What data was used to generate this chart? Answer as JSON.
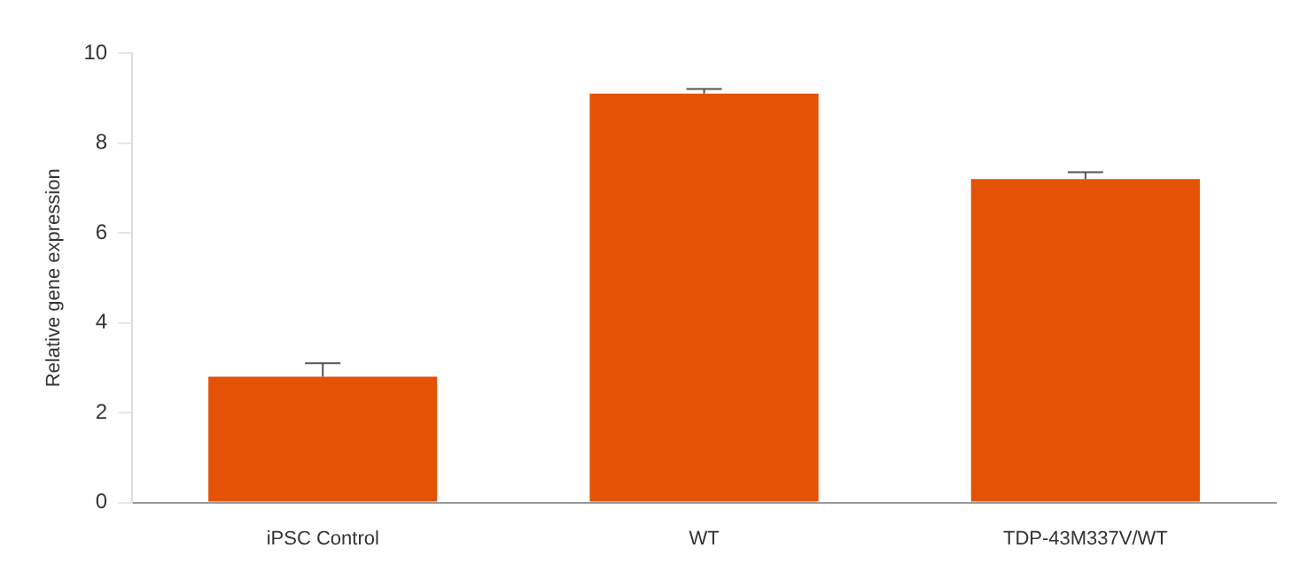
{
  "chart_data": {
    "type": "bar",
    "ylabel": "Relative gene expression",
    "categories": [
      "iPSC Control",
      "WT",
      "TDP-43M337V/WT"
    ],
    "values": [
      2.8,
      9.1,
      7.2
    ],
    "errors": [
      [
        2.8,
        3.1
      ],
      [
        9.1,
        9.2
      ],
      [
        7.2,
        7.35
      ]
    ],
    "color": "#e35205",
    "ylim": [
      0,
      10
    ],
    "yticks": [
      0,
      2,
      4,
      6,
      8,
      10
    ],
    "grid": false,
    "legend": false
  }
}
